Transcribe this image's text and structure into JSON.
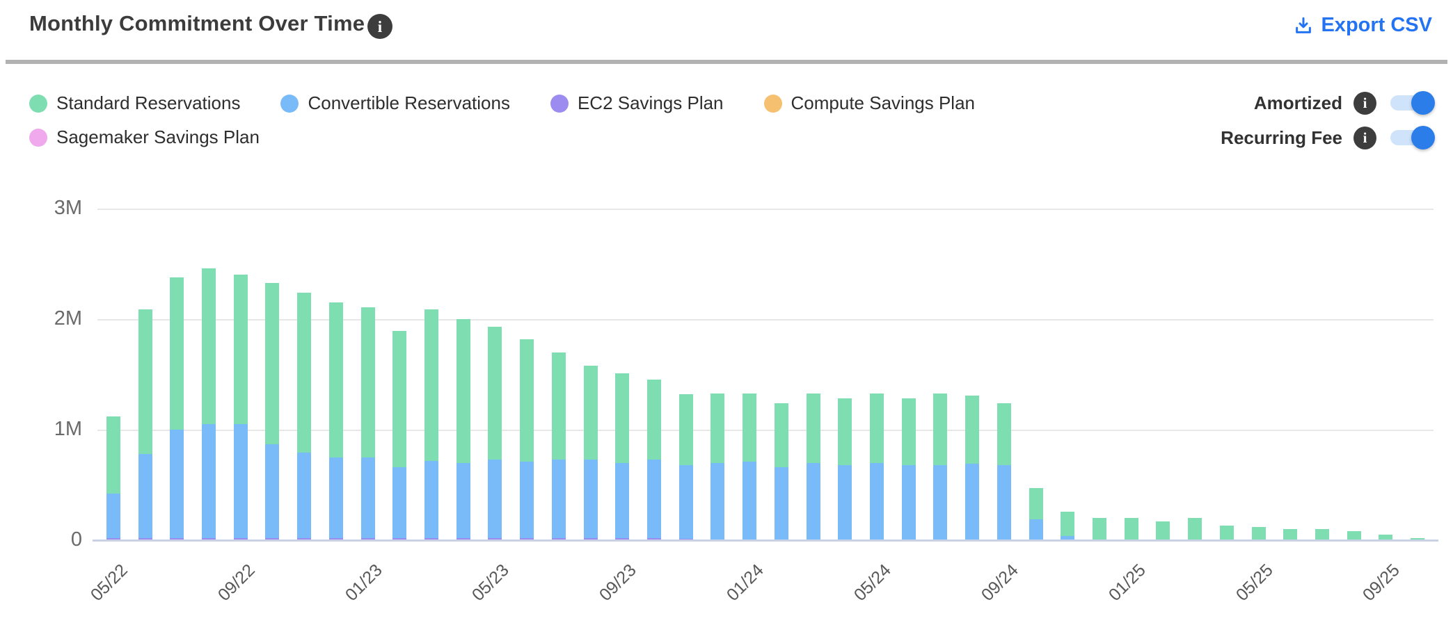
{
  "header": {
    "title": "Monthly Commitment Over Time",
    "title_info_icon": "info-icon",
    "export_label": "Export CSV"
  },
  "controls": {
    "toggles": [
      {
        "label": "Amortized",
        "state": "on"
      },
      {
        "label": "Recurring Fee",
        "state": "on"
      }
    ],
    "toggle_on_color": "#2b7de9",
    "toggle_track_color": "#cfe3fb"
  },
  "legend": {
    "items": [
      {
        "label": "Standard Reservations",
        "color": "#7eddb1"
      },
      {
        "label": "Convertible Reservations",
        "color": "#79bbf8"
      },
      {
        "label": "EC2 Savings Plan",
        "color": "#9d8cef"
      },
      {
        "label": "Compute Savings Plan",
        "color": "#f5c070"
      },
      {
        "label": "Sagemaker Savings Plan",
        "color": "#efa9ec"
      }
    ]
  },
  "chart_data": {
    "type": "bar",
    "stacked": true,
    "title": "Monthly Commitment Over Time",
    "xlabel": "",
    "ylabel": "",
    "ylim": [
      0,
      3
    ],
    "grid": true,
    "values_unit": "millions",
    "yticks": [
      {
        "label": "0",
        "value": 0
      },
      {
        "label": "1M",
        "value": 1
      },
      {
        "label": "2M",
        "value": 2
      },
      {
        "label": "3M",
        "value": 3
      }
    ],
    "x_label_every": 4,
    "x_axis_labels_shown": [
      "05/22",
      "09/22",
      "01/23",
      "05/23",
      "09/23",
      "01/24",
      "05/24",
      "09/24",
      "01/25",
      "05/25",
      "09/25"
    ],
    "categories": [
      "05/22",
      "06/22",
      "07/22",
      "08/22",
      "09/22",
      "10/22",
      "11/22",
      "12/22",
      "01/23",
      "02/23",
      "03/23",
      "04/23",
      "05/23",
      "06/23",
      "07/23",
      "08/23",
      "09/23",
      "10/23",
      "11/23",
      "12/23",
      "01/24",
      "02/24",
      "03/24",
      "04/24",
      "05/24",
      "06/24",
      "07/24",
      "08/24",
      "09/24",
      "10/24",
      "11/24",
      "12/24",
      "01/25",
      "02/25",
      "03/25",
      "04/25",
      "05/25",
      "06/25",
      "07/25",
      "08/25",
      "09/25",
      "10/25"
    ],
    "series": [
      {
        "name": "EC2 Savings Plan",
        "color": "#9d8cef",
        "stack_order": 0,
        "values": [
          0.02,
          0.02,
          0.02,
          0.02,
          0.02,
          0.02,
          0.02,
          0.02,
          0.02,
          0.02,
          0.02,
          0.02,
          0.02,
          0.02,
          0.02,
          0.02,
          0.02,
          0.02,
          0.01,
          0,
          0,
          0,
          0,
          0,
          0,
          0,
          0,
          0,
          0,
          0,
          0,
          0,
          0,
          0,
          0,
          0,
          0,
          0,
          0,
          0,
          0,
          0
        ]
      },
      {
        "name": "Convertible Reservations",
        "color": "#79bbf8",
        "stack_order": 1,
        "values": [
          0.4,
          0.76,
          0.98,
          1.03,
          1.03,
          0.85,
          0.77,
          0.73,
          0.73,
          0.64,
          0.7,
          0.68,
          0.71,
          0.69,
          0.71,
          0.71,
          0.68,
          0.71,
          0.67,
          0.7,
          0.71,
          0.66,
          0.7,
          0.68,
          0.7,
          0.68,
          0.68,
          0.69,
          0.68,
          0.19,
          0.04,
          0,
          0,
          0,
          0,
          0,
          0,
          0,
          0,
          0,
          0,
          0
        ]
      },
      {
        "name": "Standard Reservations",
        "color": "#7eddb1",
        "stack_order": 2,
        "values": [
          0.7,
          1.31,
          1.38,
          1.41,
          1.35,
          1.46,
          1.45,
          1.4,
          1.36,
          1.23,
          1.37,
          1.3,
          1.2,
          1.11,
          0.97,
          0.85,
          0.81,
          0.72,
          0.64,
          0.63,
          0.62,
          0.58,
          0.63,
          0.6,
          0.63,
          0.6,
          0.65,
          0.62,
          0.56,
          0.28,
          0.22,
          0.2,
          0.2,
          0.17,
          0.2,
          0.13,
          0.12,
          0.1,
          0.1,
          0.08,
          0.05,
          0.02
        ]
      },
      {
        "name": "Compute Savings Plan",
        "color": "#f5c070",
        "stack_order": 3,
        "values": [
          0,
          0,
          0,
          0,
          0,
          0,
          0,
          0,
          0,
          0,
          0,
          0,
          0,
          0,
          0,
          0,
          0,
          0,
          0,
          0,
          0,
          0,
          0,
          0,
          0,
          0,
          0,
          0,
          0,
          0,
          0,
          0,
          0,
          0,
          0,
          0,
          0,
          0,
          0,
          0,
          0,
          0
        ]
      },
      {
        "name": "Sagemaker Savings Plan",
        "color": "#efa9ec",
        "stack_order": 4,
        "values": [
          0,
          0,
          0,
          0,
          0,
          0,
          0,
          0,
          0,
          0,
          0,
          0,
          0,
          0,
          0,
          0,
          0,
          0,
          0,
          0,
          0,
          0,
          0,
          0,
          0,
          0,
          0,
          0,
          0,
          0,
          0,
          0,
          0,
          0,
          0,
          0,
          0,
          0,
          0,
          0,
          0,
          0
        ]
      }
    ]
  },
  "colors": {
    "accent_blue": "#2373f2",
    "title_text": "#3c3c3c",
    "axis_text": "#6a6a6a",
    "gridline": "#e7e7e7",
    "baseline": "#c9d2e4",
    "divider": "#b2b2b2"
  }
}
